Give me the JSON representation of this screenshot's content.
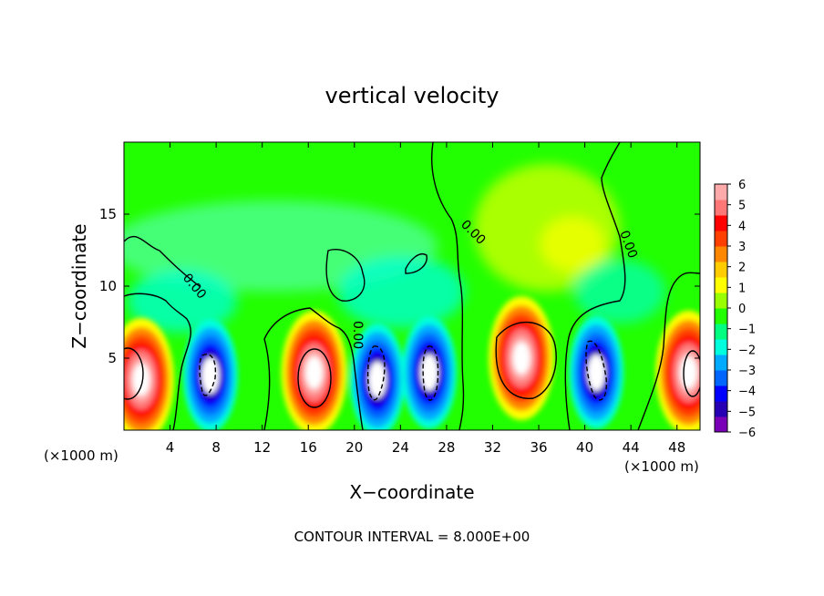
{
  "chart_data": {
    "type": "heatmap",
    "title": "vertical velocity",
    "xlabel": "X−coordinate",
    "ylabel": "Z−coordinate",
    "x_unit_label_left": "(×1000 m)",
    "x_unit_label_right": "(×1000 m)",
    "footer": "CONTOUR INTERVAL = 8.000E+00",
    "xlim": [
      0,
      50
    ],
    "ylim": [
      0,
      20
    ],
    "x_ticks": [
      4,
      8,
      12,
      16,
      20,
      24,
      28,
      32,
      36,
      40,
      44,
      48
    ],
    "x_tick_labels": [
      "4",
      "8",
      "12",
      "16",
      "20",
      "24",
      "28",
      "32",
      "36",
      "40",
      "44",
      "48"
    ],
    "y_ticks": [
      5,
      10,
      15
    ],
    "y_tick_labels": [
      "5",
      "10",
      "15"
    ],
    "colorbar": {
      "min": -6,
      "max": 6,
      "ticks": [
        6,
        5,
        4,
        3,
        2,
        1,
        0,
        -1,
        -2,
        -3,
        -4,
        -5,
        -6
      ],
      "tick_labels": [
        "6",
        "5",
        "4",
        "3",
        "2",
        "1",
        "0",
        "−1",
        "−2",
        "−3",
        "−4",
        "−5",
        "−6"
      ],
      "colors": [
        "#7a00b8",
        "#2800b4",
        "#0000ff",
        "#0066ff",
        "#00aaff",
        "#00ffdd",
        "#00ff80",
        "#22ff00",
        "#99ff00",
        "#ffff00",
        "#ffcc00",
        "#ff8800",
        "#ff4000",
        "#ff0000",
        "#ff7777",
        "#ffaaaa"
      ]
    },
    "contour_labels": [
      "0.00",
      "0.00",
      "0.00",
      "0.00"
    ],
    "cells": [
      {
        "x": 1.5,
        "z": 3.5,
        "w": 7,
        "kind": "up"
      },
      {
        "x": 7.5,
        "z": 3.8,
        "w": -9,
        "kind": "down"
      },
      {
        "x": 16.5,
        "z": 4.0,
        "w": 9,
        "kind": "up"
      },
      {
        "x": 22.0,
        "z": 3.5,
        "w": -8,
        "kind": "down"
      },
      {
        "x": 26.5,
        "z": 4.0,
        "w": -8,
        "kind": "down"
      },
      {
        "x": 34.5,
        "z": 5.0,
        "w": 10,
        "kind": "up"
      },
      {
        "x": 41.0,
        "z": 4.0,
        "w": -9,
        "kind": "down"
      },
      {
        "x": 49.0,
        "z": 4.0,
        "w": 8,
        "kind": "up"
      }
    ],
    "grid": false
  }
}
